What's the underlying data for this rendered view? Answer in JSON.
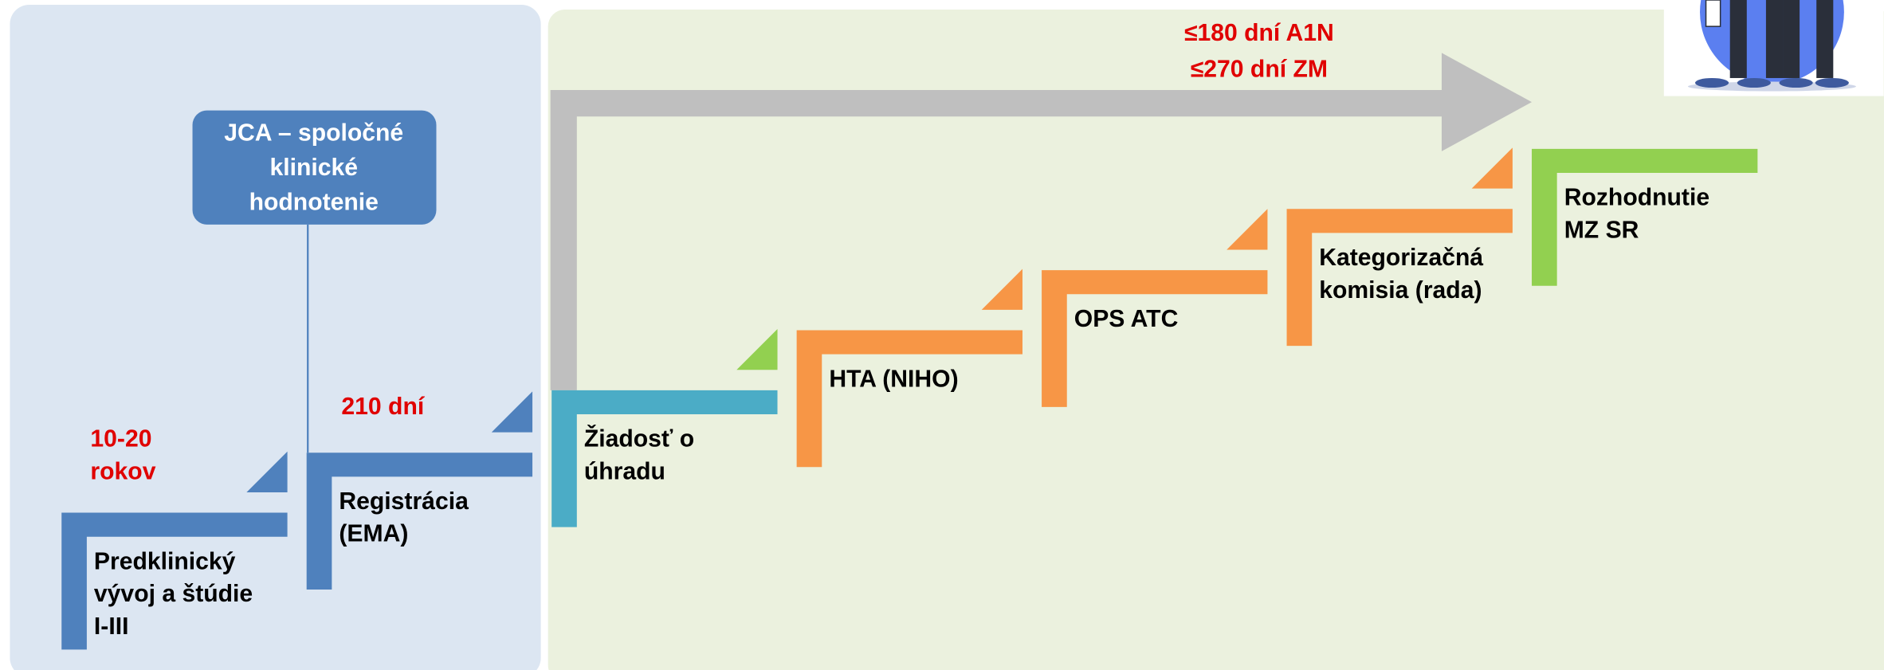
{
  "jca": {
    "lines": [
      "JCA – spoločné",
      "klinické",
      "hodnotenie"
    ]
  },
  "durations": {
    "preclinical": [
      "10-20",
      "rokov"
    ],
    "registration": "210 dní",
    "reimbursement": [
      "≤180 dní A1N",
      "≤270 dní ZM"
    ]
  },
  "steps": [
    {
      "lines": [
        "Predklinický",
        "vývoj a štúdie",
        "I-III"
      ]
    },
    {
      "lines": [
        "Registrácia",
        "(EMA)"
      ]
    },
    {
      "lines": [
        "Žiadosť o",
        "úhradu"
      ]
    },
    {
      "lines": [
        "HTA (NIHO)"
      ]
    },
    {
      "lines": [
        "OPS ATC"
      ]
    },
    {
      "lines": [
        "Kategorizačná",
        "komisia (rada)"
      ]
    },
    {
      "lines": [
        "Rozhodnutie",
        "MZ SR"
      ]
    }
  ]
}
